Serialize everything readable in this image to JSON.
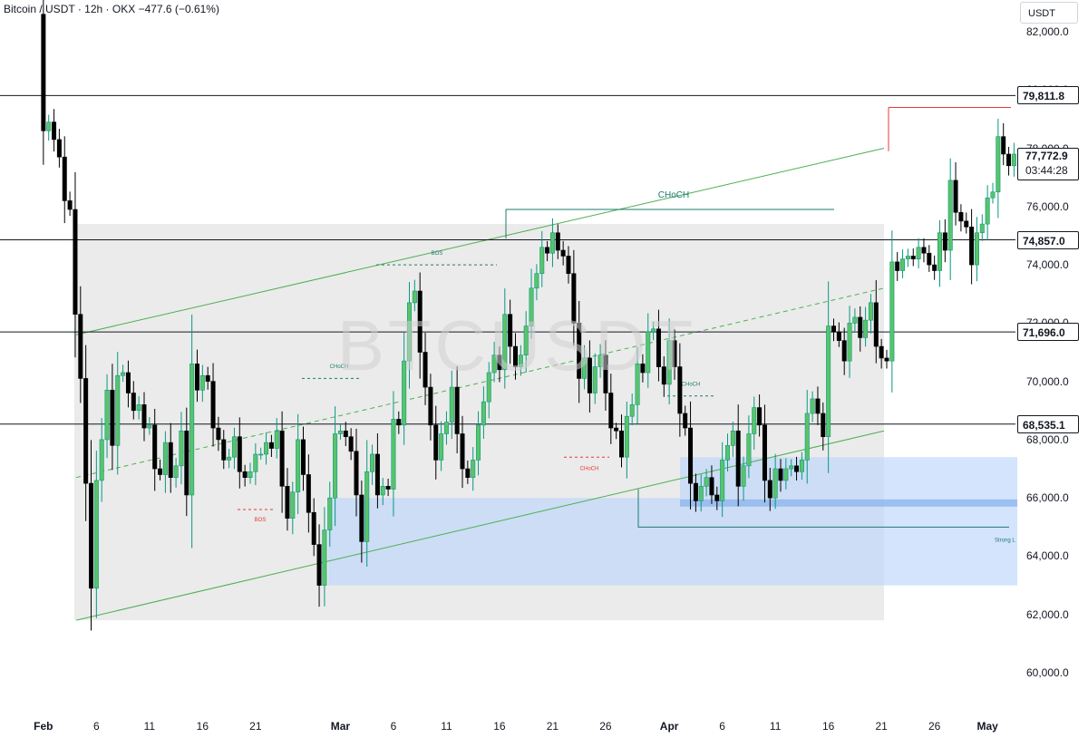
{
  "header": {
    "symbol": "Bitcoin / USDT",
    "separator": "·",
    "interval": "12h",
    "exchange": "OKX",
    "change": "−477.6 (−0.61%)"
  },
  "axis_unit": "USDT",
  "watermark": "BTCUSDT",
  "price_labels": [
    {
      "price": 79811.8,
      "text": "79,811.8"
    },
    {
      "price": 74857.0,
      "text": "74,857.0"
    },
    {
      "price": 71696.0,
      "text": "71,696.0"
    },
    {
      "price": 68535.1,
      "text": "68,535.1"
    }
  ],
  "current_price": {
    "price": 77772.9,
    "text": "77,772.9",
    "countdown": "03:44:28"
  },
  "annotations": {
    "choch_main": "CHoCH",
    "bos_small": "BOS",
    "choch_small": "CHoCH",
    "strong_low": "Strong L"
  },
  "colors": {
    "up": "#089981",
    "up_body": "#5ac36a",
    "down": "#000000",
    "channel": "#4caf50",
    "channel_fill": "#e9e9e9",
    "zone": "#bbd6fb",
    "zone_dark": "#8fb6ee",
    "hline": "#131722",
    "bos_red": "#e53935",
    "strong_low_line": "#1e7b6e"
  },
  "chart_data": {
    "type": "candlestick",
    "ylim": [
      59000,
      84000
    ],
    "y_ticks": [
      60000,
      62000,
      64000,
      66000,
      68000,
      70000,
      72000,
      74000,
      76000,
      78000,
      80000,
      82000
    ],
    "y_tick_labels": [
      "60,000.0",
      "62,000.0",
      "64,000.0",
      "66,000.0",
      "68,000.0",
      "70,000.0",
      "72,000.0",
      "74,000.0",
      "76,000.0",
      "78,000.0",
      "80,000.0",
      "82,000.0"
    ],
    "x_ticks": [
      {
        "label": "Feb",
        "major": true,
        "date": "2025-02-01"
      },
      {
        "label": "6",
        "major": false,
        "date": "2025-02-06"
      },
      {
        "label": "11",
        "major": false,
        "date": "2025-02-11"
      },
      {
        "label": "16",
        "major": false,
        "date": "2025-02-16"
      },
      {
        "label": "21",
        "major": false,
        "date": "2025-02-21"
      },
      {
        "label": "Mar",
        "major": true,
        "date": "2025-03-01"
      },
      {
        "label": "6",
        "major": false,
        "date": "2025-03-06"
      },
      {
        "label": "11",
        "major": false,
        "date": "2025-03-11"
      },
      {
        "label": "16",
        "major": false,
        "date": "2025-03-16"
      },
      {
        "label": "21",
        "major": false,
        "date": "2025-03-21"
      },
      {
        "label": "26",
        "major": false,
        "date": "2025-03-26"
      },
      {
        "label": "Apr",
        "major": true,
        "date": "2025-04-01"
      },
      {
        "label": "6",
        "major": false,
        "date": "2025-04-06"
      },
      {
        "label": "11",
        "major": false,
        "date": "2025-04-11"
      },
      {
        "label": "16",
        "major": false,
        "date": "2025-04-16"
      },
      {
        "label": "21",
        "major": false,
        "date": "2025-04-21"
      },
      {
        "label": "26",
        "major": false,
        "date": "2025-04-26"
      },
      {
        "label": "May",
        "major": true,
        "date": "2025-05-01"
      }
    ],
    "close_series": [
      82600,
      78600,
      78900,
      78300,
      77700,
      76200,
      75900,
      72300,
      70100,
      66500,
      62900,
      66600,
      68000,
      69700,
      67800,
      70200,
      70300,
      69600,
      69000,
      69200,
      68400,
      68500,
      67000,
      66800,
      67900,
      66700,
      67100,
      68300,
      66100,
      70600,
      69700,
      70200,
      70000,
      68400,
      68000,
      67300,
      67400,
      68100,
      66900,
      66700,
      66900,
      67500,
      67500,
      67900,
      67700,
      68300,
      66400,
      65300,
      66200,
      68000,
      66800,
      65500,
      64400,
      63000,
      64900,
      66000,
      68200,
      68300,
      68100,
      67600,
      66100,
      64500,
      66900,
      67500,
      66100,
      66400,
      66300,
      68700,
      68500,
      70700,
      72700,
      73100,
      71000,
      69800,
      68500,
      67300,
      68200,
      68600,
      69800,
      68200,
      67000,
      66700,
      67300,
      68500,
      69300,
      70300,
      70900,
      70400,
      72300,
      71200,
      70500,
      70900,
      71900,
      73200,
      73700,
      74600,
      74400,
      75100,
      74500,
      74300,
      73700,
      72000,
      70100,
      70800,
      69600,
      70500,
      70900,
      69600,
      68400,
      68300,
      67400,
      68800,
      69200,
      70600,
      70300,
      71700,
      71800,
      70500,
      69900,
      71400,
      70500,
      68900,
      68400,
      66500,
      65900,
      66400,
      66700,
      66100,
      65900,
      67300,
      67800,
      68300,
      66400,
      67100,
      68200,
      69100,
      68500,
      66600,
      66000,
      67000,
      66600,
      67000,
      67100,
      66900,
      67300,
      68900,
      69400,
      68900,
      68100,
      71900,
      71700,
      71400,
      70700,
      72000,
      72200,
      71500,
      72100,
      72700,
      71200,
      70800,
      70700,
      74100,
      73800,
      74200,
      74300,
      74200,
      74600,
      74400,
      74000,
      73800,
      75100,
      74500,
      76900,
      75800,
      75500,
      75300,
      74000,
      75100,
      75400,
      76300,
      76500,
      78400,
      77800,
      77400,
      77800
    ],
    "volume_points": []
  }
}
